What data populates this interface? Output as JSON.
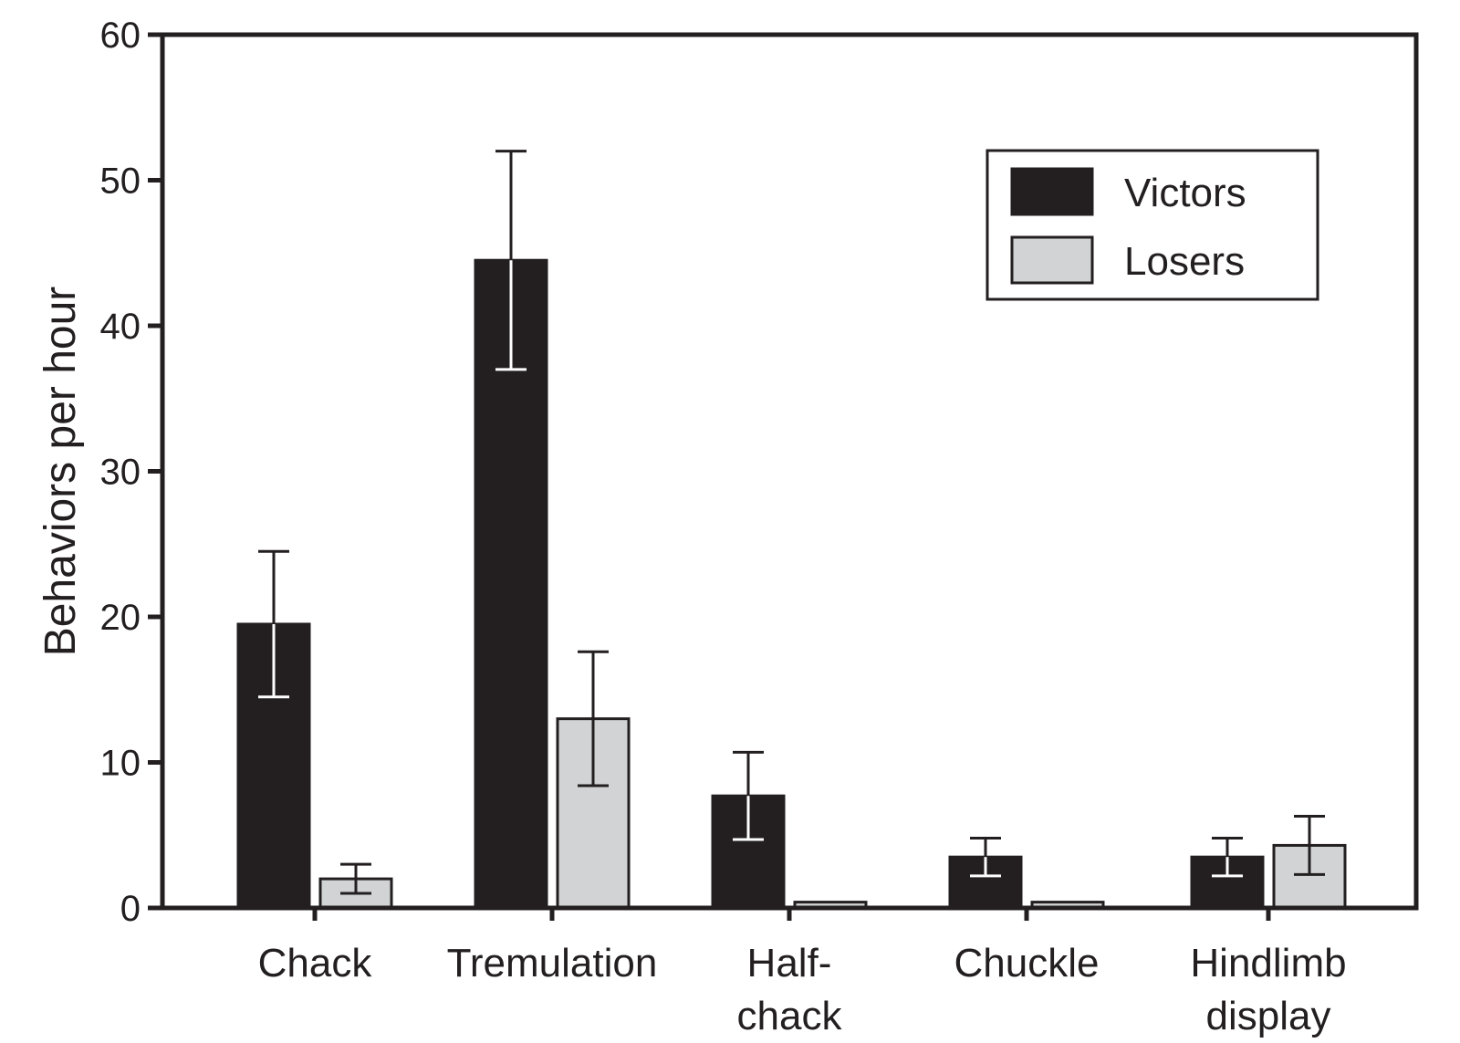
{
  "chart_data": {
    "type": "bar",
    "title": "",
    "xlabel": "",
    "ylabel": "Behaviors per hour",
    "ylim": [
      0,
      60
    ],
    "yticks": [
      0,
      10,
      20,
      30,
      40,
      50,
      60
    ],
    "grid": false,
    "legend_position": "top-right",
    "categories": [
      [
        "Chack"
      ],
      [
        "Tremulation"
      ],
      [
        "Half-",
        "chack"
      ],
      [
        "Chuckle"
      ],
      [
        "Hindlimb",
        "display"
      ]
    ],
    "series": [
      {
        "name": "Victors",
        "color": "#231f20",
        "values": [
          19.5,
          44.5,
          7.7,
          3.5,
          3.5
        ],
        "error": [
          5.0,
          7.5,
          3.0,
          1.3,
          1.3
        ]
      },
      {
        "name": "Losers",
        "color": "#d1d3d4",
        "values": [
          2.0,
          13.0,
          0.4,
          0.4,
          4.3
        ],
        "error": [
          1.0,
          4.6,
          0.1,
          0.1,
          2.0
        ]
      }
    ]
  }
}
